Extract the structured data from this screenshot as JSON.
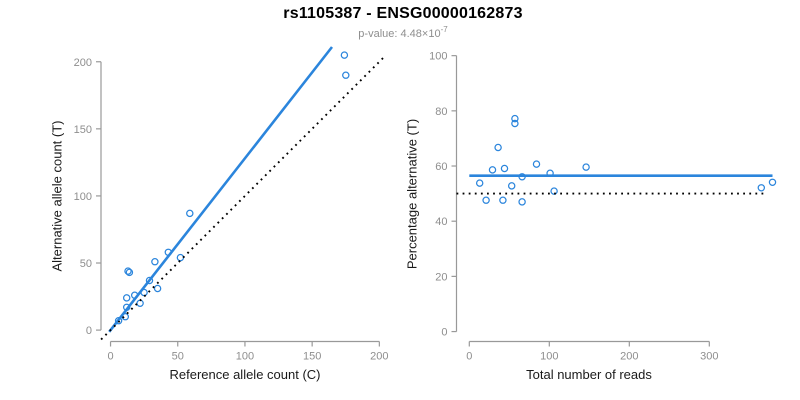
{
  "header": {
    "title": "rs1105387 - ENSG00000162873",
    "subtitle_prefix": "p-value: 4.48×10",
    "subtitle_exponent": "-7"
  },
  "colors": {
    "accent_blue": "#2b85dc",
    "identity_black": "#000000",
    "axis_gray": "#999999",
    "tick_label_gray": "#8e8e8e",
    "axis_title_color": "#1a1a1a",
    "title_color": "#000000",
    "background": "#ffffff"
  },
  "chart_data": [
    {
      "type": "scatter",
      "name": "allele-counts-scatter",
      "xlabel": "Reference allele count (C)",
      "ylabel": "Alternative allele count (T)",
      "xticks": [
        0,
        50,
        100,
        150,
        200
      ],
      "yticks": [
        0,
        50,
        100,
        150,
        200
      ],
      "xlim": [
        -7.1,
        204.2
      ],
      "ylim": [
        -8.5,
        211
      ],
      "grid": false,
      "legend": null,
      "points": [
        [
          174,
          205
        ],
        [
          175,
          190
        ],
        [
          59,
          87
        ],
        [
          43,
          58
        ],
        [
          52,
          54
        ],
        [
          33,
          51
        ],
        [
          13,
          44
        ],
        [
          14,
          43
        ],
        [
          29,
          37
        ],
        [
          35,
          31
        ],
        [
          18,
          26
        ],
        [
          25,
          28
        ],
        [
          12,
          24
        ],
        [
          22,
          20
        ],
        [
          12,
          17
        ],
        [
          11,
          10
        ],
        [
          6,
          7
        ]
      ],
      "lines": [
        {
          "role": "regression-line",
          "x1": -1,
          "y1": -1.3,
          "x2": 164.8,
          "y2": 211,
          "slope": 1.28,
          "color": "accent",
          "dash": false,
          "width": 2.6
        },
        {
          "role": "identity-line",
          "x1": -7,
          "y1": -7,
          "x2": 204,
          "y2": 204,
          "slope": 1,
          "color": "black",
          "dash": true,
          "width": 1.9
        }
      ]
    },
    {
      "type": "scatter",
      "name": "percentage-vs-reads-scatter",
      "xlabel": "Total number of reads",
      "ylabel": "Percentage alternative (T)",
      "xticks": [
        0,
        100,
        200,
        300
      ],
      "yticks": [
        0,
        20,
        40,
        60,
        80,
        100
      ],
      "xlim": [
        -16,
        394.6
      ],
      "ylim": [
        -3.6,
        103.5
      ],
      "grid": false,
      "legend": null,
      "points": [
        [
          379,
          54.1
        ],
        [
          365,
          52.1
        ],
        [
          146,
          59.6
        ],
        [
          101,
          57.4
        ],
        [
          106,
          50.9
        ],
        [
          84,
          60.7
        ],
        [
          57,
          77.2
        ],
        [
          57,
          75.4
        ],
        [
          66,
          56.1
        ],
        [
          66,
          47.0
        ],
        [
          44,
          59.1
        ],
        [
          53,
          52.8
        ],
        [
          36,
          66.7
        ],
        [
          42,
          47.6
        ],
        [
          29,
          58.6
        ],
        [
          21,
          47.6
        ],
        [
          13,
          53.8
        ]
      ],
      "lines": [
        {
          "role": "regression-line",
          "x1": 0,
          "y1": 56.5,
          "x2": 379,
          "y2": 56.5,
          "value": 56.5,
          "color": "accent",
          "dash": false,
          "width": 2.6
        },
        {
          "role": "identity-line",
          "x1": -16,
          "y1": 50,
          "x2": 372,
          "y2": 50,
          "value": 50,
          "color": "black",
          "dash": true,
          "width": 1.9
        }
      ]
    }
  ]
}
